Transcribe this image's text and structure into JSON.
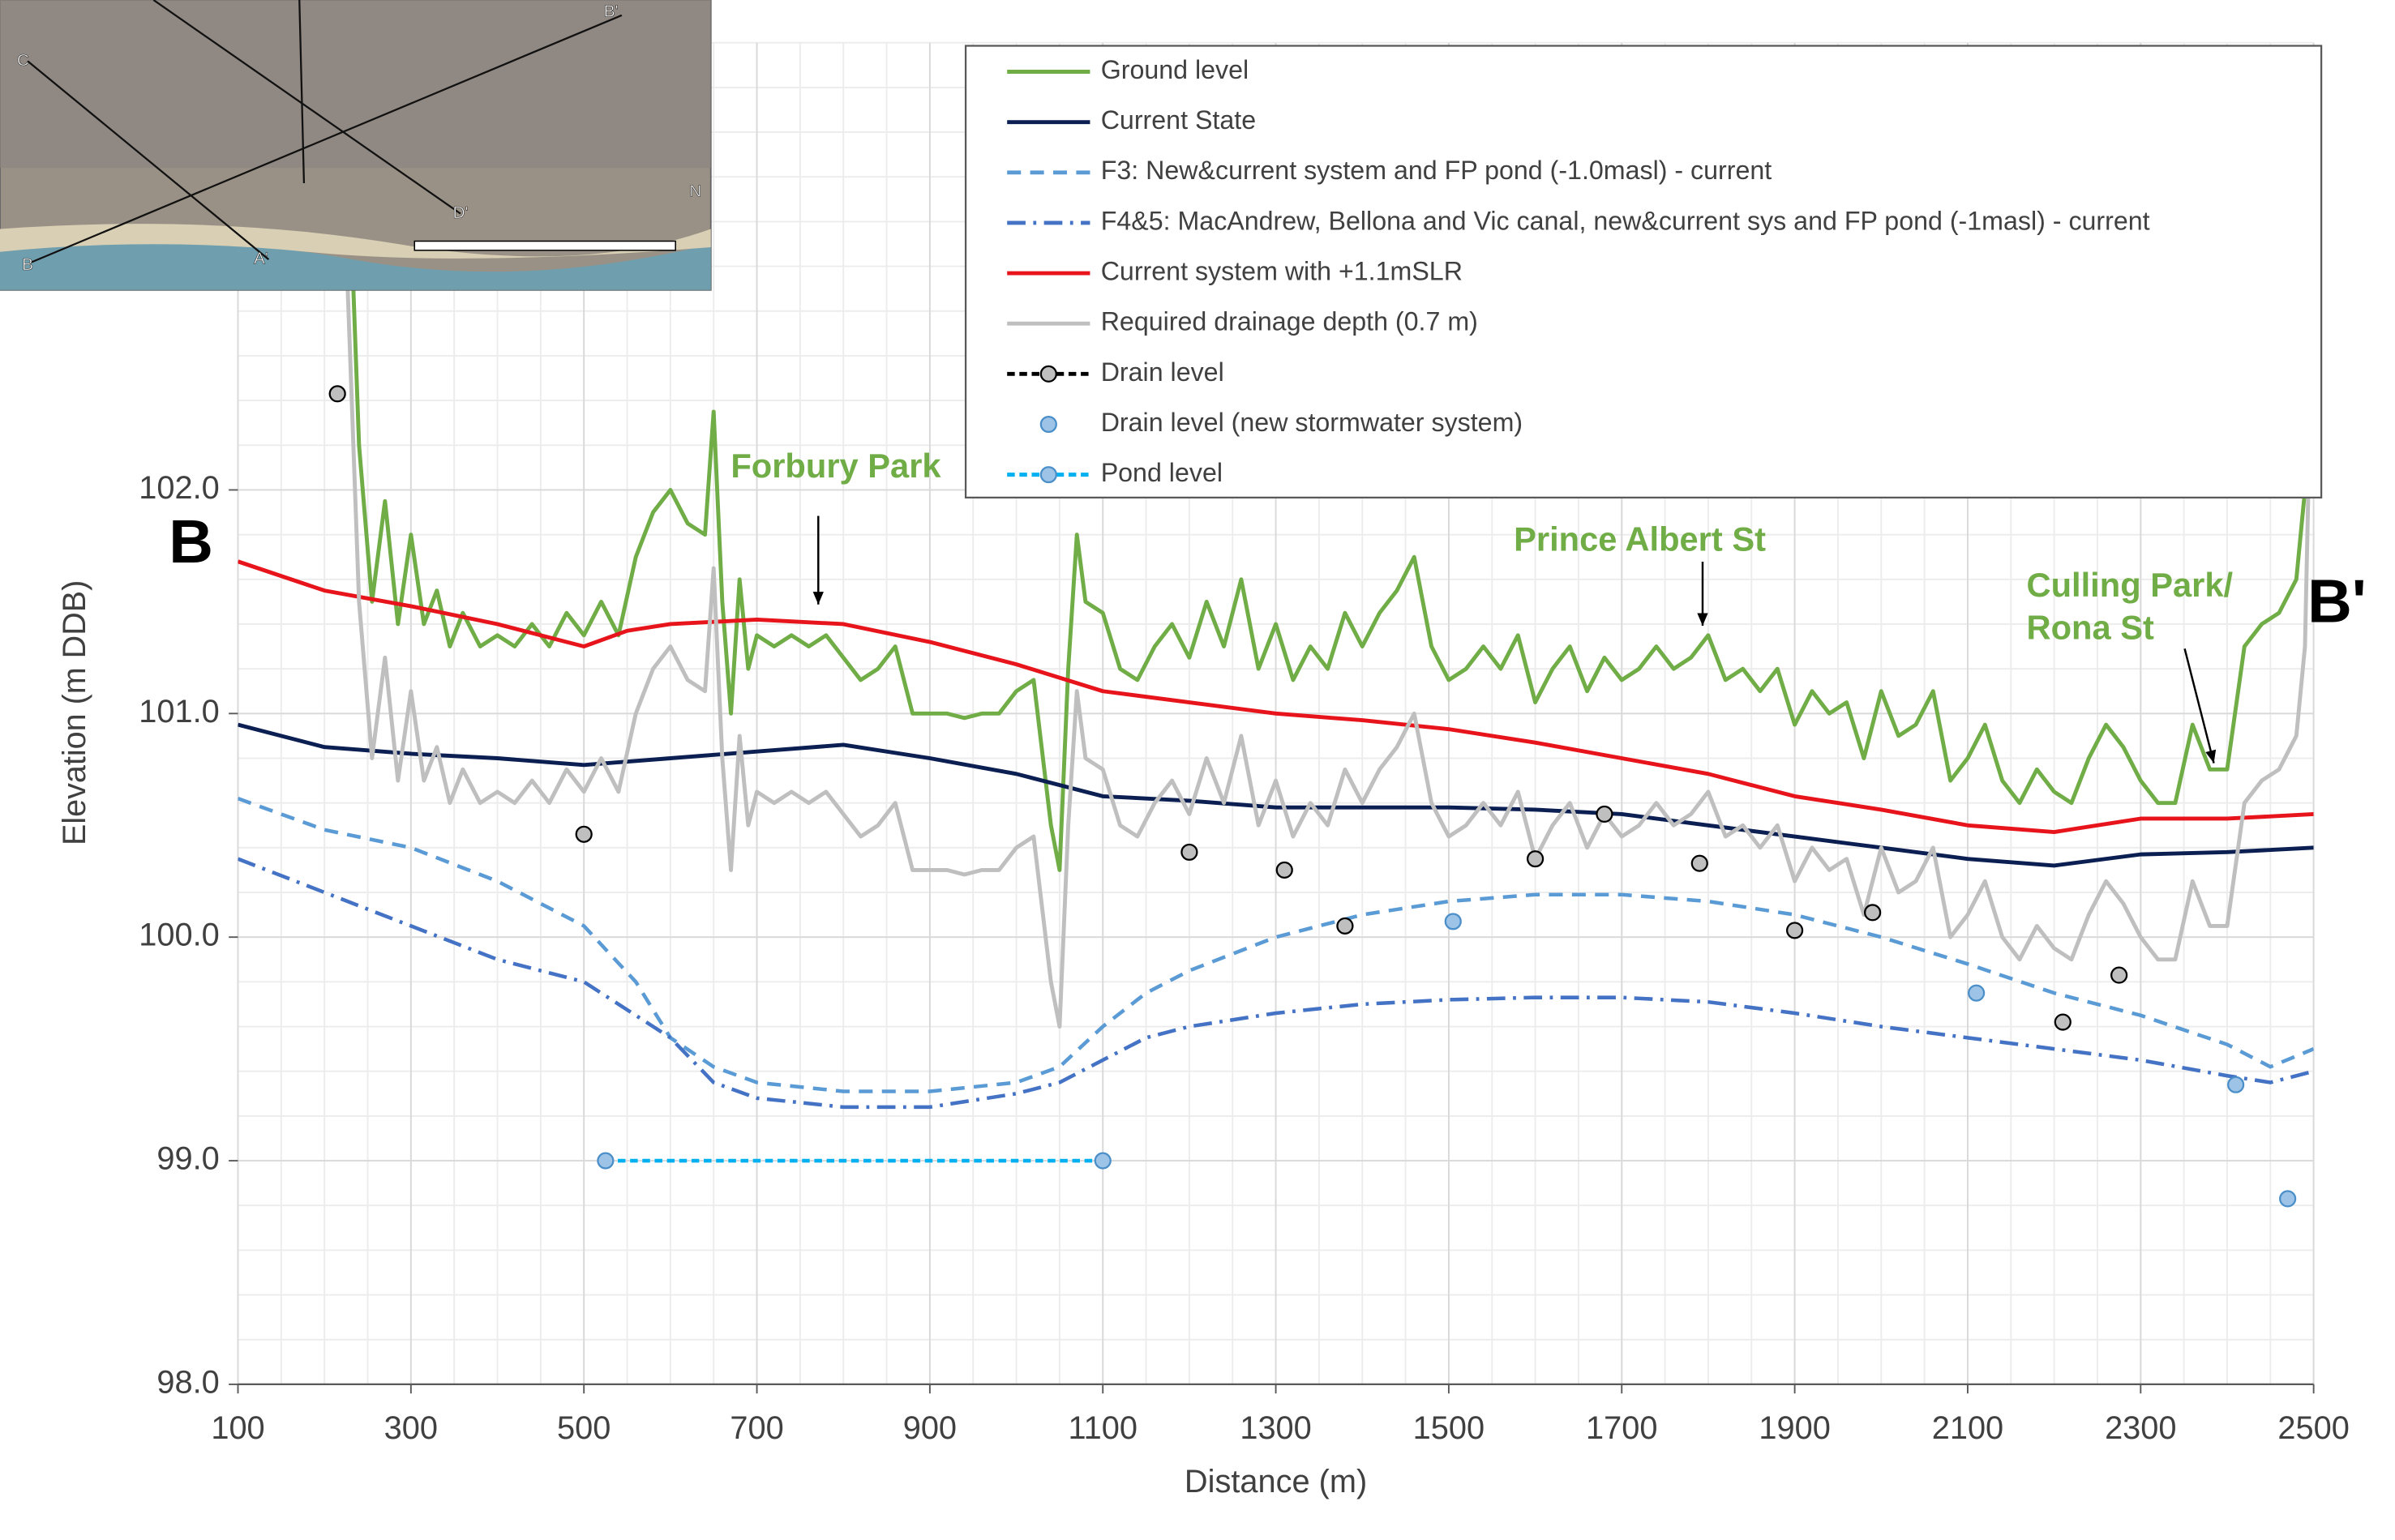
{
  "chart_data": {
    "type": "line",
    "xlabel": "Distance (m)",
    "ylabel": "Elevation (m DDB)",
    "xlim": [
      100,
      2500
    ],
    "ylim": [
      98,
      104
    ],
    "xticks": [
      100,
      300,
      500,
      700,
      900,
      1100,
      1300,
      1500,
      1700,
      1900,
      2100,
      2300,
      2500
    ],
    "yticks": [
      {
        "value": 98,
        "label": "98.0"
      },
      {
        "value": 99,
        "label": "99.0"
      },
      {
        "value": 100,
        "label": "100.0"
      },
      {
        "value": 101,
        "label": "101.0"
      },
      {
        "value": 102,
        "label": "102.0"
      }
    ],
    "grid": true,
    "minor_grid": true,
    "legend": "upper right",
    "series": [
      {
        "name": "Ground level",
        "color": "#70ad47",
        "line_style": "solid",
        "x": [
          225,
          240,
          255,
          270,
          285,
          300,
          315,
          330,
          345,
          360,
          380,
          400,
          420,
          440,
          460,
          480,
          500,
          520,
          540,
          560,
          580,
          600,
          620,
          640,
          650,
          660,
          670,
          680,
          690,
          700,
          720,
          740,
          760,
          780,
          800,
          820,
          840,
          860,
          880,
          900,
          920,
          940,
          960,
          980,
          1000,
          1020,
          1040,
          1050,
          1060,
          1070,
          1080,
          1100,
          1120,
          1140,
          1160,
          1180,
          1200,
          1220,
          1240,
          1260,
          1280,
          1300,
          1320,
          1340,
          1360,
          1380,
          1400,
          1420,
          1440,
          1460,
          1480,
          1500,
          1520,
          1540,
          1560,
          1580,
          1600,
          1620,
          1640,
          1660,
          1680,
          1700,
          1720,
          1740,
          1760,
          1780,
          1800,
          1820,
          1840,
          1860,
          1880,
          1900,
          1920,
          1940,
          1960,
          1980,
          2000,
          2020,
          2040,
          2060,
          2080,
          2100,
          2120,
          2140,
          2160,
          2180,
          2200,
          2220,
          2240,
          2260,
          2280,
          2300,
          2320,
          2340,
          2360,
          2380,
          2400,
          2420,
          2440,
          2460,
          2480,
          2490,
          2500
        ],
        "values": [
          103.8,
          102.2,
          101.5,
          101.95,
          101.4,
          101.8,
          101.4,
          101.55,
          101.3,
          101.45,
          101.3,
          101.35,
          101.3,
          101.4,
          101.3,
          101.45,
          101.35,
          101.5,
          101.35,
          101.7,
          101.9,
          102.0,
          101.85,
          101.8,
          102.35,
          101.5,
          101.0,
          101.6,
          101.2,
          101.35,
          101.3,
          101.35,
          101.3,
          101.35,
          101.25,
          101.15,
          101.2,
          101.3,
          101.0,
          101.0,
          101.0,
          100.98,
          101.0,
          101.0,
          101.1,
          101.15,
          100.5,
          100.3,
          101.2,
          101.8,
          101.5,
          101.45,
          101.2,
          101.15,
          101.3,
          101.4,
          101.25,
          101.5,
          101.3,
          101.6,
          101.2,
          101.4,
          101.15,
          101.3,
          101.2,
          101.45,
          101.3,
          101.45,
          101.55,
          101.7,
          101.3,
          101.15,
          101.2,
          101.3,
          101.2,
          101.35,
          101.05,
          101.2,
          101.3,
          101.1,
          101.25,
          101.15,
          101.2,
          101.3,
          101.2,
          101.25,
          101.35,
          101.15,
          101.2,
          101.1,
          101.2,
          100.95,
          101.1,
          101.0,
          101.05,
          100.8,
          101.1,
          100.9,
          100.95,
          101.1,
          100.7,
          100.8,
          100.95,
          100.7,
          100.6,
          100.75,
          100.65,
          100.6,
          100.8,
          100.95,
          100.85,
          100.7,
          100.6,
          100.6,
          100.95,
          100.75,
          100.75,
          101.3,
          101.4,
          101.45,
          101.6,
          102.0,
          103.8
        ]
      },
      {
        "name": "Current State",
        "color": "#0b1f52",
        "line_style": "solid",
        "x": [
          100,
          200,
          300,
          400,
          500,
          600,
          700,
          800,
          900,
          1000,
          1100,
          1200,
          1300,
          1400,
          1500,
          1600,
          1700,
          1800,
          1900,
          2000,
          2100,
          2200,
          2300,
          2400,
          2500
        ],
        "values": [
          100.95,
          100.85,
          100.82,
          100.8,
          100.77,
          100.8,
          100.83,
          100.86,
          100.8,
          100.73,
          100.63,
          100.61,
          100.58,
          100.58,
          100.58,
          100.57,
          100.55,
          100.5,
          100.45,
          100.4,
          100.35,
          100.32,
          100.37,
          100.38,
          100.4
        ]
      },
      {
        "name": "F3: New&current system and FP pond (-1.0masl) - current",
        "color": "#5b9bd5",
        "line_style": "dashed",
        "x": [
          100,
          200,
          300,
          400,
          500,
          560,
          600,
          650,
          700,
          800,
          900,
          1000,
          1050,
          1100,
          1150,
          1200,
          1300,
          1400,
          1500,
          1600,
          1700,
          1800,
          1900,
          2000,
          2100,
          2200,
          2300,
          2400,
          2450,
          2500
        ],
        "values": [
          100.62,
          100.48,
          100.4,
          100.25,
          100.05,
          99.8,
          99.55,
          99.42,
          99.35,
          99.31,
          99.31,
          99.35,
          99.42,
          99.6,
          99.75,
          99.85,
          100.0,
          100.1,
          100.16,
          100.19,
          100.19,
          100.16,
          100.1,
          100.0,
          99.88,
          99.75,
          99.65,
          99.52,
          99.42,
          99.5
        ]
      },
      {
        "name": "F4&5: MacAndrew, Bellona and Vic canal, new&current sys and FP pond (-1masl) - current",
        "color": "#4472c4",
        "line_style": "dashdot",
        "x": [
          100,
          200,
          300,
          400,
          500,
          600,
          650,
          700,
          800,
          900,
          1000,
          1050,
          1100,
          1150,
          1200,
          1300,
          1400,
          1500,
          1600,
          1700,
          1800,
          1900,
          2000,
          2100,
          2200,
          2300,
          2400,
          2450,
          2500
        ],
        "values": [
          100.35,
          100.2,
          100.05,
          99.9,
          99.8,
          99.55,
          99.35,
          99.28,
          99.24,
          99.24,
          99.3,
          99.35,
          99.45,
          99.55,
          99.6,
          99.66,
          99.7,
          99.72,
          99.73,
          99.73,
          99.71,
          99.66,
          99.6,
          99.55,
          99.5,
          99.45,
          99.38,
          99.35,
          99.4
        ]
      },
      {
        "name": "Current system with +1.1mSLR",
        "color": "#e8141b",
        "line_style": "solid",
        "x": [
          100,
          200,
          300,
          400,
          500,
          550,
          600,
          700,
          800,
          900,
          1000,
          1100,
          1200,
          1300,
          1400,
          1500,
          1600,
          1700,
          1800,
          1900,
          2000,
          2100,
          2200,
          2300,
          2400,
          2500
        ],
        "values": [
          101.68,
          101.55,
          101.48,
          101.4,
          101.3,
          101.37,
          101.4,
          101.42,
          101.4,
          101.32,
          101.22,
          101.1,
          101.05,
          101.0,
          100.97,
          100.93,
          100.87,
          100.8,
          100.73,
          100.63,
          100.57,
          100.5,
          100.47,
          100.53,
          100.53,
          100.55
        ]
      },
      {
        "name": "Required drainage depth (0.7 m)",
        "color": "#bfbfbf",
        "line_style": "solid",
        "x": [
          225,
          240,
          255,
          270,
          285,
          300,
          315,
          330,
          345,
          360,
          380,
          400,
          420,
          440,
          460,
          480,
          500,
          520,
          540,
          560,
          580,
          600,
          620,
          640,
          650,
          660,
          670,
          680,
          690,
          700,
          720,
          740,
          760,
          780,
          800,
          820,
          840,
          860,
          880,
          900,
          920,
          940,
          960,
          980,
          1000,
          1020,
          1040,
          1050,
          1060,
          1070,
          1080,
          1100,
          1120,
          1140,
          1160,
          1180,
          1200,
          1220,
          1240,
          1260,
          1280,
          1300,
          1320,
          1340,
          1360,
          1380,
          1400,
          1420,
          1440,
          1460,
          1480,
          1500,
          1520,
          1540,
          1560,
          1580,
          1600,
          1620,
          1640,
          1660,
          1680,
          1700,
          1720,
          1740,
          1760,
          1780,
          1800,
          1820,
          1840,
          1860,
          1880,
          1900,
          1920,
          1940,
          1960,
          1980,
          2000,
          2020,
          2040,
          2060,
          2080,
          2100,
          2120,
          2140,
          2160,
          2180,
          2200,
          2220,
          2240,
          2260,
          2280,
          2300,
          2320,
          2340,
          2360,
          2380,
          2400,
          2420,
          2440,
          2460,
          2480,
          2490,
          2500
        ],
        "values": [
          103.1,
          101.5,
          100.8,
          101.25,
          100.7,
          101.1,
          100.7,
          100.85,
          100.6,
          100.75,
          100.6,
          100.65,
          100.6,
          100.7,
          100.6,
          100.75,
          100.65,
          100.8,
          100.65,
          101.0,
          101.2,
          101.3,
          101.15,
          101.1,
          101.65,
          100.8,
          100.3,
          100.9,
          100.5,
          100.65,
          100.6,
          100.65,
          100.6,
          100.65,
          100.55,
          100.45,
          100.5,
          100.6,
          100.3,
          100.3,
          100.3,
          100.28,
          100.3,
          100.3,
          100.4,
          100.45,
          99.8,
          99.6,
          100.5,
          101.1,
          100.8,
          100.75,
          100.5,
          100.45,
          100.6,
          100.7,
          100.55,
          100.8,
          100.6,
          100.9,
          100.5,
          100.7,
          100.45,
          100.6,
          100.5,
          100.75,
          100.6,
          100.75,
          100.85,
          101.0,
          100.6,
          100.45,
          100.5,
          100.6,
          100.5,
          100.65,
          100.35,
          100.5,
          100.6,
          100.4,
          100.55,
          100.45,
          100.5,
          100.6,
          100.5,
          100.55,
          100.65,
          100.45,
          100.5,
          100.4,
          100.5,
          100.25,
          100.4,
          100.3,
          100.35,
          100.1,
          100.4,
          100.2,
          100.25,
          100.4,
          100.0,
          100.1,
          100.25,
          100.0,
          99.9,
          100.05,
          99.95,
          99.9,
          100.1,
          100.25,
          100.15,
          100.0,
          99.9,
          99.9,
          100.25,
          100.05,
          100.05,
          100.6,
          100.7,
          100.75,
          100.9,
          101.3,
          103.1
        ]
      },
      {
        "name": "Drain level",
        "color": "#000000",
        "line_style": "markers",
        "marker_fill": "#bfbfbf",
        "x": [
          215,
          500,
          1200,
          1310,
          1380,
          1600,
          1680,
          1790,
          1900,
          1990,
          2210,
          2275
        ],
        "values": [
          102.43,
          100.46,
          100.38,
          100.3,
          100.05,
          100.35,
          100.55,
          100.33,
          100.03,
          100.11,
          99.62,
          99.83
        ]
      },
      {
        "name": "Drain level (new stormwater system)",
        "color": "#9dc3e6",
        "line_style": "markers",
        "marker_fill": "#9dc3e6",
        "x": [
          1505,
          2110,
          2410,
          2470
        ],
        "values": [
          100.07,
          99.75,
          99.34,
          98.83
        ]
      },
      {
        "name": "Pond level",
        "color": "#00b0f0",
        "line_style": "dashed-markers",
        "marker_fill": "#9dc3e6",
        "x": [
          525,
          1100
        ],
        "values": [
          99.0,
          99.0
        ]
      }
    ],
    "annotations": [
      {
        "text": "Forbury Park",
        "color": "#70ad47"
      },
      {
        "text": "Prince Albert St",
        "color": "#70ad47"
      },
      {
        "text": "Culling Park/",
        "color": "#70ad47"
      },
      {
        "text": "Rona St",
        "color": "#70ad47"
      },
      {
        "text": "B",
        "color": "#000000"
      },
      {
        "text": "B'",
        "color": "#000000"
      }
    ]
  },
  "inset_map": {
    "labels": [
      "C",
      "B'",
      "B",
      "A'",
      "D'",
      "N"
    ]
  }
}
